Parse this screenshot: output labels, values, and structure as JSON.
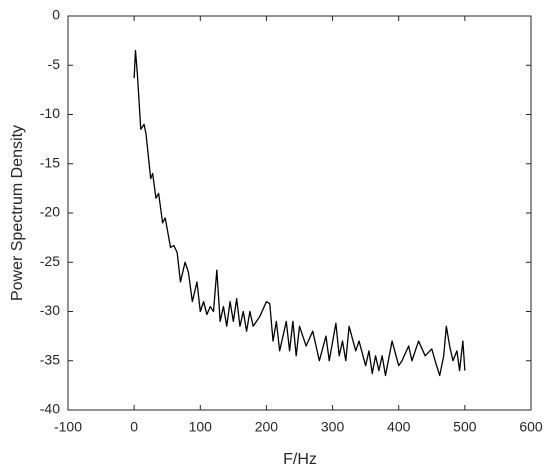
{
  "chart_data": {
    "type": "line",
    "xlabel": "F/Hz",
    "ylabel": "Power Spectrum Density",
    "x": [
      0,
      2,
      5,
      10,
      15,
      18,
      25,
      28,
      33,
      37,
      43,
      47,
      55,
      60,
      65,
      70,
      77,
      82,
      88,
      95,
      100,
      105,
      110,
      115,
      120,
      125,
      130,
      135,
      140,
      145,
      150,
      155,
      160,
      165,
      170,
      175,
      180,
      190,
      200,
      205,
      210,
      215,
      220,
      230,
      235,
      240,
      245,
      250,
      260,
      270,
      280,
      290,
      295,
      305,
      310,
      315,
      320,
      325,
      335,
      340,
      350,
      355,
      360,
      365,
      370,
      375,
      380,
      390,
      400,
      405,
      415,
      420,
      430,
      440,
      450,
      455,
      462,
      468,
      472,
      477,
      482,
      488,
      492,
      497,
      500
    ],
    "values": [
      -6.3,
      -3.5,
      -6,
      -11.5,
      -11,
      -12,
      -16.5,
      -16,
      -18.5,
      -18,
      -21,
      -20.5,
      -23.5,
      -23.3,
      -24,
      -27,
      -25,
      -26,
      -29,
      -27,
      -30,
      -29,
      -30.3,
      -29.5,
      -30,
      -25.8,
      -31,
      -29.5,
      -31.5,
      -29,
      -31,
      -28.7,
      -31.5,
      -30,
      -32,
      -30,
      -31.5,
      -30.5,
      -29,
      -29.2,
      -33,
      -31,
      -34,
      -31,
      -34,
      -31,
      -34.5,
      -31.5,
      -33.5,
      -32,
      -35,
      -32.5,
      -35,
      -31.2,
      -34.5,
      -33,
      -35,
      -31.5,
      -34,
      -33,
      -35.5,
      -34,
      -36.3,
      -34.5,
      -36,
      -34.5,
      -36.5,
      -33,
      -35.5,
      -35,
      -33.5,
      -35,
      -33,
      -34.5,
      -33.8,
      -35,
      -36.5,
      -34.5,
      -31.5,
      -33.5,
      -35,
      -34,
      -36,
      -33,
      -36
    ],
    "color": "#000000",
    "xlim": [
      -100,
      600
    ],
    "xticks": [
      -100,
      0,
      100,
      200,
      300,
      400,
      500,
      600
    ],
    "ylim": [
      -40,
      0
    ],
    "yticks": [
      -40,
      -35,
      -30,
      -25,
      -20,
      -15,
      -10,
      -5,
      0
    ],
    "grid": false
  }
}
